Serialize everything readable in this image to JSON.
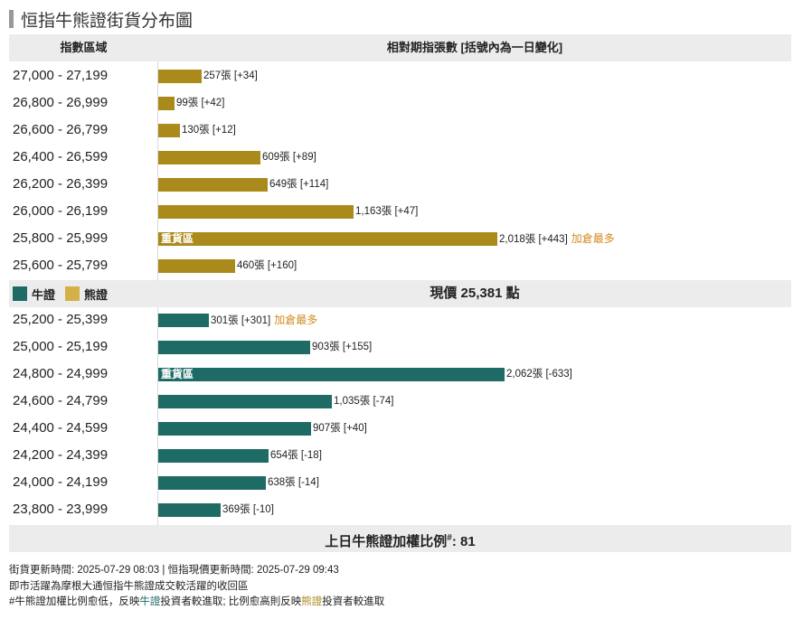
{
  "title": "恒指牛熊證街貨分布圖",
  "header": {
    "col1": "指數區域",
    "col2": "相對期指張數 [括號內為一日變化]"
  },
  "colors": {
    "bull": "#1e6b66",
    "bear": "#ab8a1c",
    "note": "#d58a1e"
  },
  "legend": {
    "bull": "牛證",
    "bear": "熊證"
  },
  "current_price": "現價 25,381 點",
  "chart_data": {
    "type": "bar",
    "orientation": "horizontal",
    "title": "恒指牛熊證街貨分布圖",
    "bear_rows": [
      {
        "range": "27,000 - 27,199",
        "value": 257,
        "label": "257張 [+34]",
        "inner": "",
        "note": ""
      },
      {
        "range": "26,800 - 26,999",
        "value": 99,
        "label": "99張 [+42]",
        "inner": "",
        "note": ""
      },
      {
        "range": "26,600 - 26,799",
        "value": 130,
        "label": "130張 [+12]",
        "inner": "",
        "note": ""
      },
      {
        "range": "26,400 - 26,599",
        "value": 609,
        "label": "609張 [+89]",
        "inner": "",
        "note": ""
      },
      {
        "range": "26,200 - 26,399",
        "value": 649,
        "label": "649張 [+114]",
        "inner": "",
        "note": ""
      },
      {
        "range": "26,000 - 26,199",
        "value": 1163,
        "label": "1,163張 [+47]",
        "inner": "",
        "note": ""
      },
      {
        "range": "25,800 - 25,999",
        "value": 2018,
        "label": "2,018張 [+443]",
        "inner": "重貨區",
        "note": "加倉最多"
      },
      {
        "range": "25,600 - 25,799",
        "value": 460,
        "label": "460張 [+160]",
        "inner": "",
        "note": ""
      }
    ],
    "bull_rows": [
      {
        "range": "25,200 - 25,399",
        "value": 301,
        "label": "301張 [+301]",
        "inner": "",
        "note": "加倉最多"
      },
      {
        "range": "25,000 - 25,199",
        "value": 903,
        "label": "903張 [+155]",
        "inner": "",
        "note": ""
      },
      {
        "range": "24,800 - 24,999",
        "value": 2062,
        "label": "2,062張 [-633]",
        "inner": "重貨區",
        "note": ""
      },
      {
        "range": "24,600 - 24,799",
        "value": 1035,
        "label": "1,035張 [-74]",
        "inner": "",
        "note": ""
      },
      {
        "range": "24,400 - 24,599",
        "value": 907,
        "label": "907張 [+40]",
        "inner": "",
        "note": ""
      },
      {
        "range": "24,200 - 24,399",
        "value": 654,
        "label": "654張 [-18]",
        "inner": "",
        "note": ""
      },
      {
        "range": "24,000 - 24,199",
        "value": 638,
        "label": "638張 [-14]",
        "inner": "",
        "note": ""
      },
      {
        "range": "23,800 - 23,999",
        "value": 369,
        "label": "369張 [-10]",
        "inner": "",
        "note": ""
      }
    ]
  },
  "ratio": {
    "label": "上日牛熊證加權比例",
    "mark": "#",
    "value": ": 81"
  },
  "footer": {
    "line1": "街貨更新時間: 2025-07-29 08:03   |   恒指現價更新時間: 2025-07-29 09:43",
    "line2": "即市活躍為摩根大通恒指牛熊證成交較活躍的收回區",
    "line3_a": "#牛熊證加權比例愈低，反映",
    "line3_bull": "牛證",
    "line3_b": "投資者較進取; 比例愈高則反映",
    "line3_bear": "熊證",
    "line3_c": "投資者較進取"
  }
}
